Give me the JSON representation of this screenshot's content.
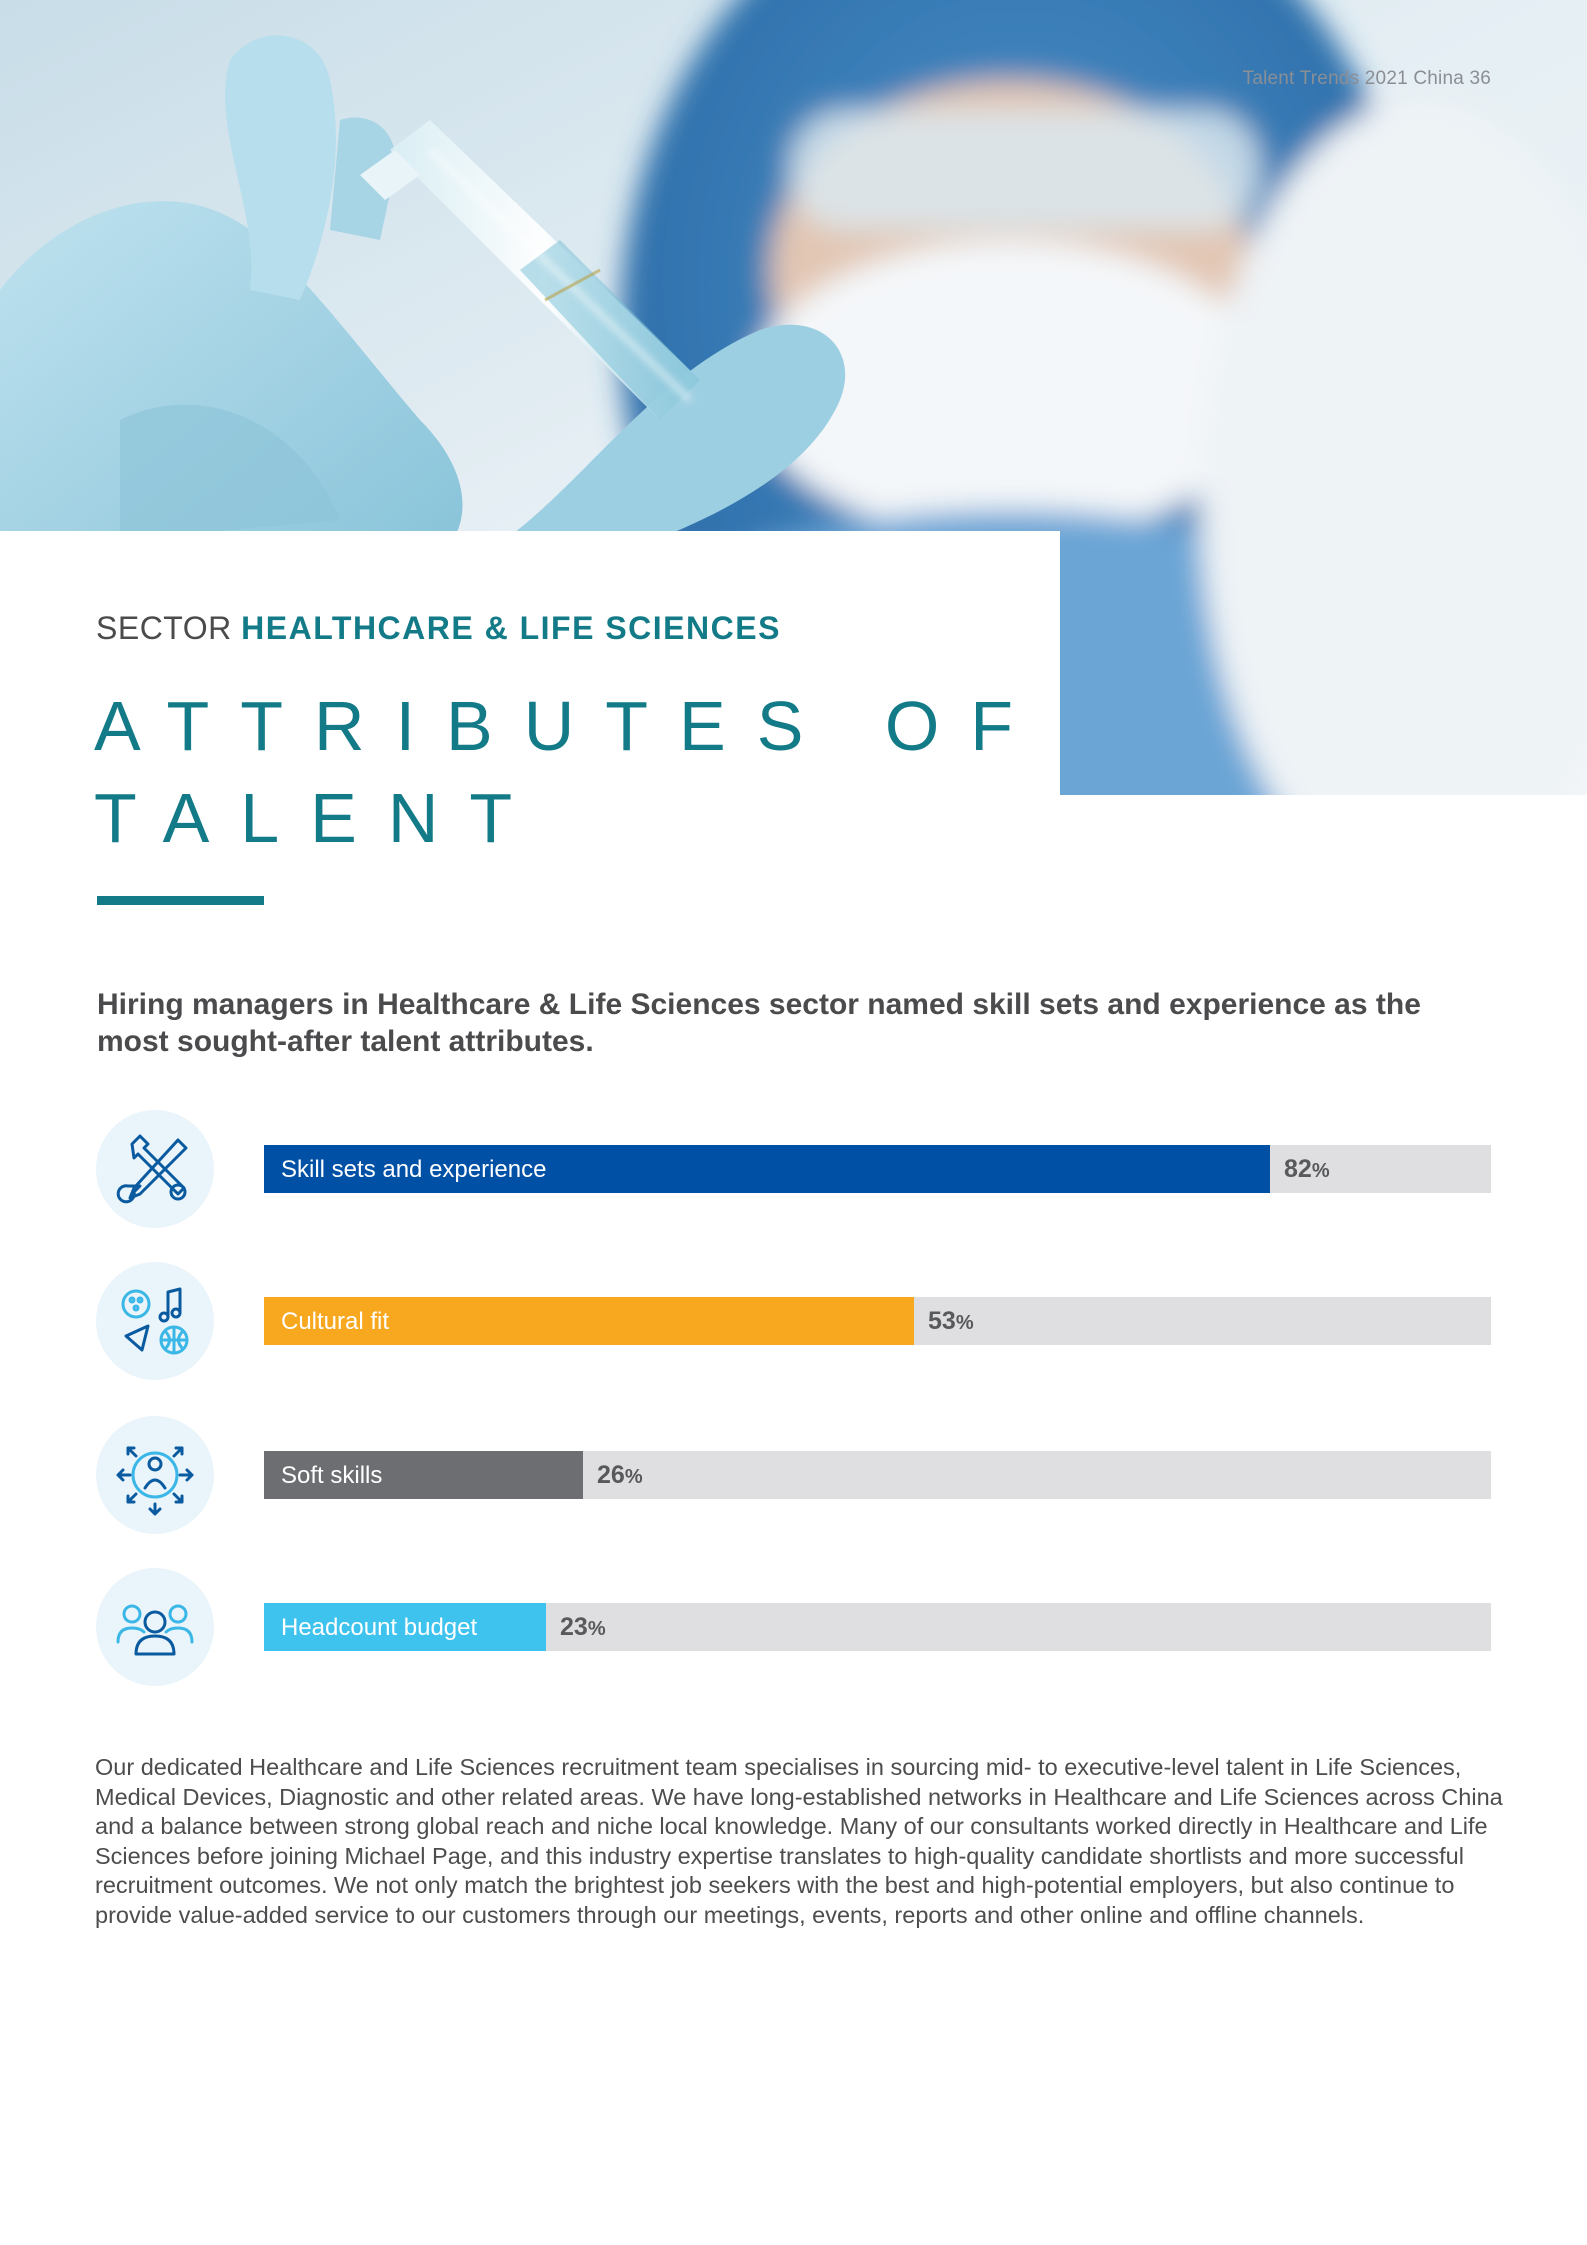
{
  "header": {
    "running_head": "Talent Trends 2021 China  36"
  },
  "title_block": {
    "sector_prefix": "SECTOR",
    "sector_name": "HEALTHCARE & LIFE SCIENCES",
    "title": "ATTRIBUTES OF TALENT"
  },
  "intro": "Hiring managers in Healthcare & Life Sciences sector named skill sets and experience as the most sought-after talent attributes.",
  "chart_data": {
    "type": "bar",
    "orientation": "horizontal",
    "title": "",
    "xlabel": "",
    "ylabel": "",
    "xlim": [
      0,
      100
    ],
    "value_suffix": "%",
    "categories": [
      "Skill sets and experience",
      "Cultural fit",
      "Soft skills",
      "Headcount budget"
    ],
    "values": [
      82,
      53,
      26,
      23
    ],
    "colors": [
      "#0050a6",
      "#f8a81e",
      "#6d6e71",
      "#3ec3ef"
    ],
    "icons": [
      "tools-icon",
      "hobbies-icon",
      "soft-skills-icon",
      "team-icon"
    ],
    "track_color": "#dfdfe1"
  },
  "body_text": "Our dedicated Healthcare and Life Sciences recruitment team specialises in sourcing mid- to executive-level talent in Life Sciences, Medical Devices, Diagnostic and other related areas. We have long-established networks in Healthcare and Life Sciences across China and a balance between strong global reach and niche local knowledge. Many of our consultants worked directly in Healthcare and Life Sciences before joining Michael Page, and this industry expertise translates to high-quality candidate shortlists and more successful recruitment outcomes. We not only match the brightest job seekers with the best and high-potential employers, but also continue to provide value-added service to our customers through our meetings, events, reports and other online and offline channels.",
  "theme": {
    "accent": "#137a87",
    "text": "#4b4b4d"
  }
}
